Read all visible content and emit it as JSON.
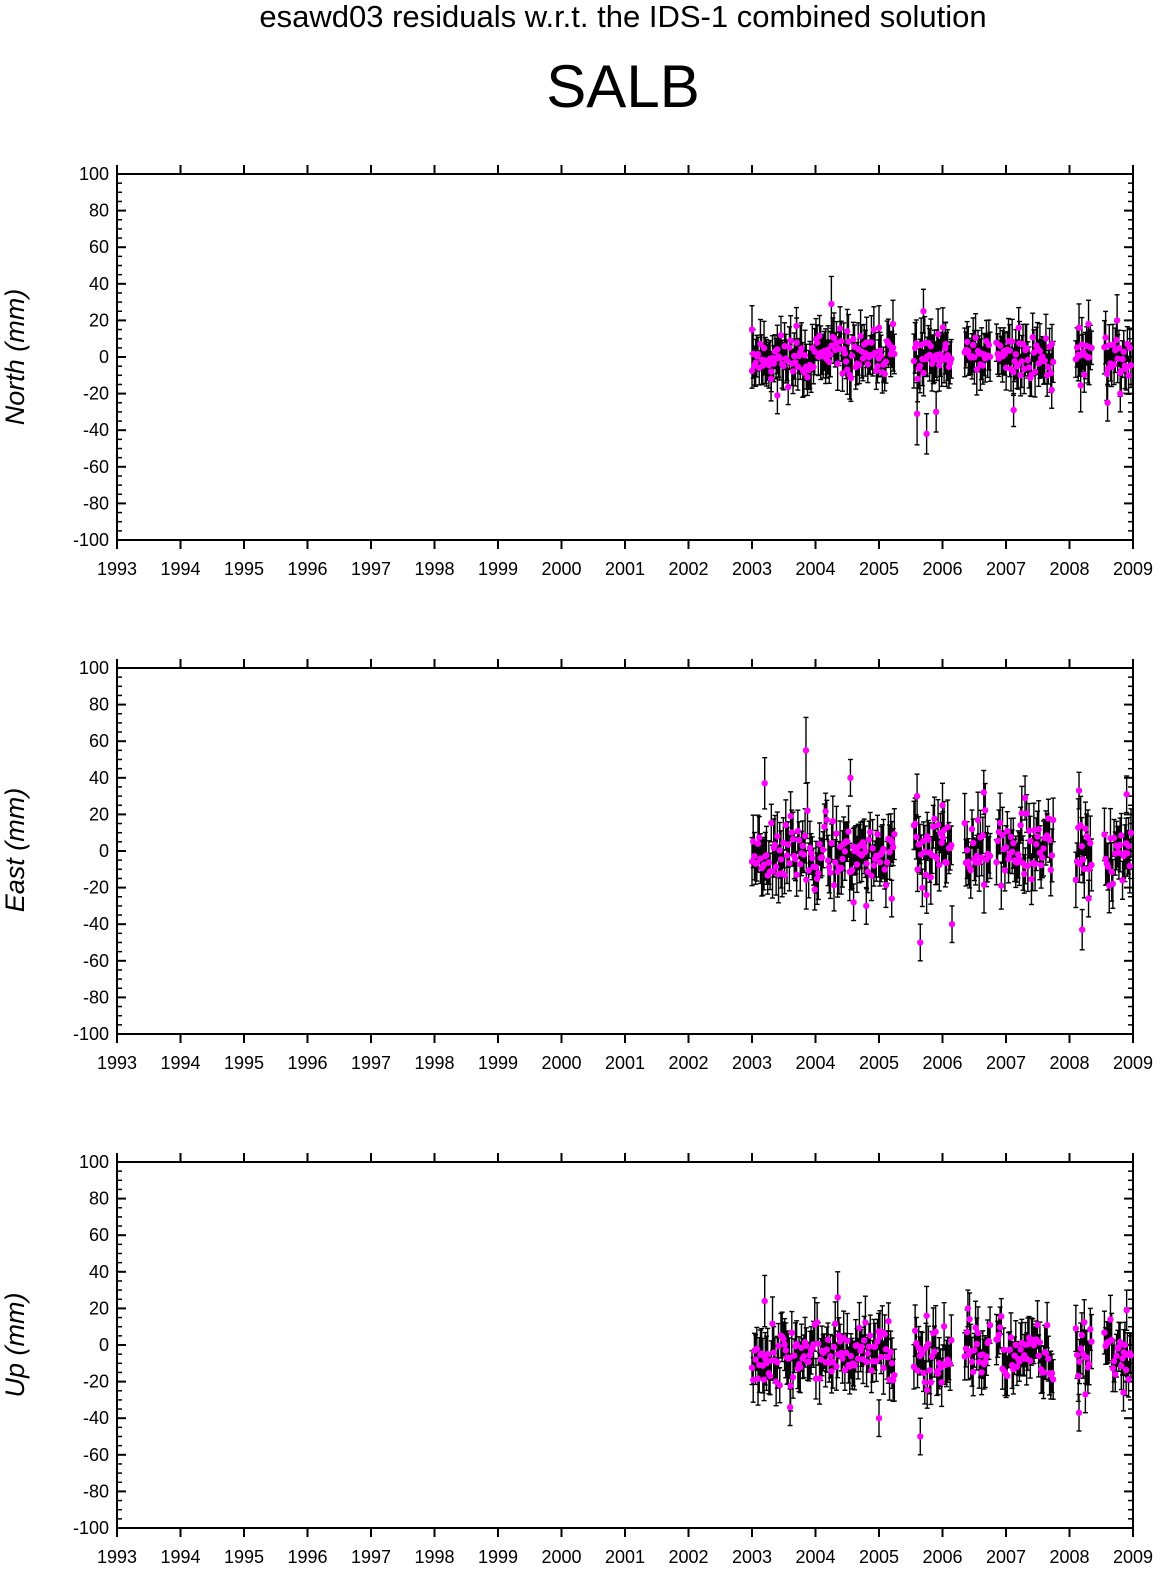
{
  "suptitle": "esawd03 residuals w.r.t. the IDS-1 combined solution",
  "title": "SALB",
  "marker_color": "#ff00ff",
  "errorbar_color": "#000000",
  "chart_data": [
    {
      "type": "scatter",
      "ylabel": "North (mm)",
      "xlim": [
        1993,
        2009
      ],
      "ylim": [
        -100,
        100
      ],
      "x_ticks": [
        "1993",
        "1994",
        "1995",
        "1996",
        "1997",
        "1998",
        "1999",
        "2000",
        "2001",
        "2002",
        "2003",
        "2004",
        "2005",
        "2006",
        "2007",
        "2008",
        "2009"
      ],
      "y_ticks": [
        "100",
        "80",
        "60",
        "40",
        "20",
        "0",
        "-20",
        "-40",
        "-60",
        "-80",
        "-100"
      ],
      "sigma_mm": 12,
      "segments": [
        {
          "start": 2003.0,
          "end": 2005.25,
          "step": 0.019
        },
        {
          "start": 2005.55,
          "end": 2006.15,
          "step": 0.019
        },
        {
          "start": 2006.35,
          "end": 2006.75,
          "step": 0.019
        },
        {
          "start": 2006.85,
          "end": 2007.75,
          "step": 0.019
        },
        {
          "start": 2008.1,
          "end": 2008.35,
          "step": 0.019
        },
        {
          "start": 2008.55,
          "end": 2008.97,
          "step": 0.019
        }
      ],
      "noise_seed": 11,
      "noise_scale": 6,
      "mean_mm": 0,
      "points": [
        {
          "x": 2003.0,
          "y": 15,
          "err": 13
        },
        {
          "x": 2003.3,
          "y": -12,
          "err": 12
        },
        {
          "x": 2003.4,
          "y": -21,
          "err": 10
        },
        {
          "x": 2003.7,
          "y": 17,
          "err": 10
        },
        {
          "x": 2004.25,
          "y": 29,
          "err": 15
        },
        {
          "x": 2004.5,
          "y": 14,
          "err": 12
        },
        {
          "x": 2005.0,
          "y": 16,
          "err": 12
        },
        {
          "x": 2005.22,
          "y": 18,
          "err": 13
        },
        {
          "x": 2005.6,
          "y": -31,
          "err": 17
        },
        {
          "x": 2005.7,
          "y": 25,
          "err": 12
        },
        {
          "x": 2005.75,
          "y": -42,
          "err": 11
        },
        {
          "x": 2005.9,
          "y": -30,
          "err": 11
        },
        {
          "x": 2006.05,
          "y": 7,
          "err": 12
        },
        {
          "x": 2007.12,
          "y": -29,
          "err": 9
        },
        {
          "x": 2007.2,
          "y": 16,
          "err": 11
        },
        {
          "x": 2007.72,
          "y": -18,
          "err": 10
        },
        {
          "x": 2008.15,
          "y": 16,
          "err": 13
        },
        {
          "x": 2008.3,
          "y": 18,
          "err": 13
        },
        {
          "x": 2008.75,
          "y": 20,
          "err": 14
        },
        {
          "x": 2008.6,
          "y": -25,
          "err": 10
        },
        {
          "x": 2008.8,
          "y": -20,
          "err": 10
        }
      ]
    },
    {
      "type": "scatter",
      "ylabel": "East (mm)",
      "xlim": [
        1993,
        2009
      ],
      "ylim": [
        -100,
        100
      ],
      "x_ticks": [
        "1993",
        "1994",
        "1995",
        "1996",
        "1997",
        "1998",
        "1999",
        "2000",
        "2001",
        "2002",
        "2003",
        "2004",
        "2005",
        "2006",
        "2007",
        "2008",
        "2009"
      ],
      "y_ticks": [
        "100",
        "80",
        "60",
        "40",
        "20",
        "0",
        "-20",
        "-40",
        "-60",
        "-80",
        "-100"
      ],
      "sigma_mm": 13,
      "segments": [
        {
          "start": 2003.0,
          "end": 2005.25,
          "step": 0.019
        },
        {
          "start": 2005.55,
          "end": 2006.15,
          "step": 0.019
        },
        {
          "start": 2006.35,
          "end": 2006.75,
          "step": 0.019
        },
        {
          "start": 2006.85,
          "end": 2007.75,
          "step": 0.019
        },
        {
          "start": 2008.1,
          "end": 2008.35,
          "step": 0.019
        },
        {
          "start": 2008.55,
          "end": 2008.97,
          "step": 0.019
        }
      ],
      "noise_seed": 23,
      "noise_scale": 9,
      "mean_mm": 0,
      "points": [
        {
          "x": 2003.2,
          "y": 37,
          "err": 14
        },
        {
          "x": 2003.85,
          "y": 55,
          "err": 18
        },
        {
          "x": 2004.55,
          "y": 40,
          "err": 10
        },
        {
          "x": 2004.6,
          "y": -28,
          "err": 10
        },
        {
          "x": 2004.8,
          "y": -30,
          "err": 10
        },
        {
          "x": 2005.2,
          "y": -26,
          "err": 10
        },
        {
          "x": 2005.6,
          "y": 30,
          "err": 12
        },
        {
          "x": 2005.65,
          "y": -50,
          "err": 10
        },
        {
          "x": 2005.75,
          "y": -24,
          "err": 10
        },
        {
          "x": 2006.0,
          "y": 25,
          "err": 12
        },
        {
          "x": 2006.15,
          "y": -40,
          "err": 10
        },
        {
          "x": 2006.65,
          "y": 32,
          "err": 12
        },
        {
          "x": 2007.3,
          "y": 29,
          "err": 12
        },
        {
          "x": 2008.15,
          "y": 33,
          "err": 10
        },
        {
          "x": 2008.2,
          "y": -43,
          "err": 11
        },
        {
          "x": 2008.3,
          "y": -26,
          "err": 10
        },
        {
          "x": 2008.9,
          "y": 31,
          "err": 10
        }
      ]
    },
    {
      "type": "scatter",
      "ylabel": "Up (mm)",
      "xlim": [
        1993,
        2009
      ],
      "ylim": [
        -100,
        100
      ],
      "x_ticks": [
        "1993",
        "1994",
        "1995",
        "1996",
        "1997",
        "1998",
        "1999",
        "2000",
        "2001",
        "2002",
        "2003",
        "2004",
        "2005",
        "2006",
        "2007",
        "2008",
        "2009"
      ],
      "y_ticks": [
        "100",
        "80",
        "60",
        "40",
        "20",
        "0",
        "-20",
        "-40",
        "-60",
        "-80",
        "-100"
      ],
      "sigma_mm": 12,
      "segments": [
        {
          "start": 2003.0,
          "end": 2005.25,
          "step": 0.019
        },
        {
          "start": 2005.55,
          "end": 2006.15,
          "step": 0.019
        },
        {
          "start": 2006.35,
          "end": 2006.75,
          "step": 0.019
        },
        {
          "start": 2006.85,
          "end": 2007.75,
          "step": 0.019
        },
        {
          "start": 2008.1,
          "end": 2008.35,
          "step": 0.019
        },
        {
          "start": 2008.55,
          "end": 2008.97,
          "step": 0.019
        }
      ],
      "noise_seed": 37,
      "noise_scale": 8,
      "mean_mm": -5,
      "points": [
        {
          "x": 2003.2,
          "y": 24,
          "err": 14
        },
        {
          "x": 2003.6,
          "y": -34,
          "err": 10
        },
        {
          "x": 2004.35,
          "y": 26,
          "err": 14
        },
        {
          "x": 2005.0,
          "y": -40,
          "err": 10
        },
        {
          "x": 2005.15,
          "y": 13,
          "err": 10
        },
        {
          "x": 2005.65,
          "y": -50,
          "err": 10
        },
        {
          "x": 2005.75,
          "y": 16,
          "err": 16
        },
        {
          "x": 2006.4,
          "y": 20,
          "err": 10
        },
        {
          "x": 2008.15,
          "y": -37,
          "err": 10
        },
        {
          "x": 2008.25,
          "y": -27,
          "err": 10
        },
        {
          "x": 2008.9,
          "y": 19,
          "err": 11
        },
        {
          "x": 2008.85,
          "y": -26,
          "err": 10
        }
      ]
    }
  ]
}
